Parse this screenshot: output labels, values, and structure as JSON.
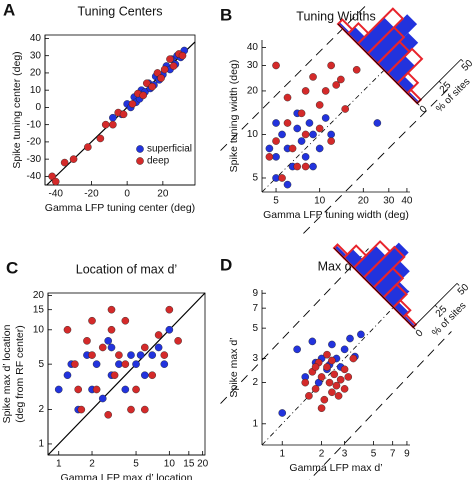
{
  "chart_data": [
    {
      "type": "scatter",
      "panel": "A",
      "title": "Tuning Centers",
      "xlabel": [
        "Gamma LFP tuning center (deg)"
      ],
      "ylabel": [
        "Spike tuning center (deg)"
      ],
      "xscale": "linear",
      "yscale": "linear",
      "xlim": [
        -46,
        38
      ],
      "ylim": [
        -45,
        42
      ],
      "xticks": [
        -40,
        -20,
        0,
        20
      ],
      "yticks": [
        -40,
        -30,
        -20,
        -10,
        0,
        10,
        20,
        30,
        40
      ],
      "box": true,
      "identity_line": "solid",
      "legend": "lower right",
      "series": [
        {
          "name": "superficial",
          "color": "#2233dd",
          "x": [
            -8,
            -3,
            0,
            2,
            4,
            5,
            7,
            8,
            10,
            12,
            13,
            15,
            16,
            18,
            20,
            22,
            24,
            25,
            27,
            28,
            30,
            32
          ],
          "y": [
            -6,
            -4,
            2,
            0,
            6,
            3,
            5,
            10,
            9,
            14,
            11,
            13,
            18,
            16,
            19,
            24,
            22,
            28,
            25,
            30,
            29,
            33
          ]
        },
        {
          "name": "deep",
          "color": "#d42a2a",
          "x": [
            -42,
            -40,
            -35,
            -30,
            -22,
            -15,
            -12,
            -8,
            -5,
            -2,
            3,
            6,
            9,
            11,
            14,
            17,
            19,
            21,
            24,
            26,
            29,
            31
          ],
          "y": [
            -40,
            -43,
            -32,
            -30,
            -23,
            -18,
            -10,
            -10,
            -3,
            -4,
            2,
            8,
            7,
            14,
            12,
            20,
            17,
            22,
            28,
            24,
            31,
            30
          ]
        }
      ]
    },
    {
      "type": "scatter",
      "panel": "B",
      "title": "Tuning Widths",
      "xlabel": [
        "Gamma LFP tuning width (deg)"
      ],
      "ylabel": [
        "Spike tuning width (deg)"
      ],
      "xscale": "log",
      "yscale": "log",
      "xlim": [
        4,
        42
      ],
      "ylim": [
        4,
        45
      ],
      "xticks": [
        5,
        10,
        20,
        30,
        40
      ],
      "yticks": [
        5,
        10,
        20,
        30,
        40
      ],
      "box": false,
      "identity_line": "dashed",
      "series": [
        {
          "color": "#2233dd",
          "x": [
            4.5,
            5,
            5.5,
            5,
            6,
            6.5,
            7,
            7.5,
            8,
            8.5,
            9,
            10,
            11,
            6,
            5,
            7,
            12,
            9,
            25
          ],
          "y": [
            8,
            7,
            10,
            5,
            8,
            6,
            11,
            9,
            7,
            12,
            10,
            8,
            13,
            4.5,
            12,
            14,
            10,
            6,
            12
          ]
        },
        {
          "color": "#d42a2a",
          "x": [
            4.5,
            5,
            5.5,
            6,
            6.5,
            7,
            7.5,
            8,
            9,
            10,
            11,
            12,
            13,
            15,
            6,
            8,
            10,
            12,
            14,
            18,
            28,
            8,
            5
          ],
          "y": [
            7,
            9,
            5,
            12,
            8,
            6,
            14,
            10,
            25,
            16,
            20,
            9,
            22,
            15,
            18,
            20,
            11,
            30,
            24,
            28,
            44,
            6,
            30
          ]
        }
      ],
      "histogram": {
        "xlabel": "% of sites",
        "ticks": [
          0,
          25,
          50
        ],
        "bins": [
          0,
          1,
          2,
          3,
          4,
          5,
          6,
          7,
          8
        ],
        "series": [
          {
            "color": "#2233dd",
            "fill": true,
            "values": [
              2,
              8,
              30,
              45,
              35,
              20,
              8,
              2
            ]
          },
          {
            "color": "#e8242c",
            "fill": false,
            "values": [
              5,
              12,
              40,
              30,
              25,
              28,
              12,
              4
            ]
          }
        ]
      }
    },
    {
      "type": "scatter",
      "panel": "C",
      "title": "Location of max d’",
      "xlabel": [
        "Gamma LFP max d’ location",
        "(deg from RF center)"
      ],
      "ylabel": [
        "Spike max d’ location",
        "(deg from RF center)"
      ],
      "xscale": "log",
      "yscale": "log",
      "xlim": [
        0.8,
        21
      ],
      "ylim": [
        0.8,
        21
      ],
      "xticks": [
        1,
        2,
        5,
        10,
        15,
        20
      ],
      "yticks": [
        1,
        2,
        5,
        10,
        15,
        20
      ],
      "box": true,
      "identity_line": "solid",
      "series": [
        {
          "color": "#2233dd",
          "x": [
            1,
            1.2,
            1.5,
            1.8,
            2,
            2.2,
            2.5,
            3,
            3,
            3.5,
            4,
            4.5,
            5,
            5.5,
            6,
            7,
            8,
            9,
            10,
            1.3,
            2.8
          ],
          "y": [
            3,
            4,
            2,
            6,
            3,
            5,
            2.5,
            4,
            7,
            5,
            3,
            6,
            5,
            6,
            4,
            6,
            7,
            5,
            10,
            5,
            8
          ]
        },
        {
          "color": "#d42a2a",
          "x": [
            1.2,
            1.4,
            1.6,
            1.8,
            2,
            2.2,
            2.5,
            2.8,
            3,
            3.2,
            3.5,
            4,
            4.5,
            5,
            6,
            7,
            8,
            9,
            10,
            12,
            1.5,
            2,
            3,
            4,
            6
          ],
          "y": [
            10,
            5,
            2,
            8,
            12,
            3,
            7,
            1.8,
            10,
            4,
            6,
            12,
            2,
            3,
            7,
            4,
            9,
            6,
            15,
            8,
            3,
            6,
            15,
            5,
            2
          ]
        }
      ]
    },
    {
      "type": "scatter",
      "panel": "D",
      "title": "Max d’",
      "xlabel": [
        "Gamma LFP max d’"
      ],
      "ylabel": [
        "Spike max d’"
      ],
      "xscale": "log",
      "yscale": "log",
      "xlim": [
        0.7,
        9.5
      ],
      "ylim": [
        0.7,
        9.5
      ],
      "xticks": [
        1,
        2,
        3,
        5,
        7,
        9
      ],
      "yticks": [
        1,
        2,
        3,
        5,
        7,
        9
      ],
      "box": false,
      "identity_line": "dashed",
      "series": [
        {
          "color": "#2233dd",
          "x": [
            1,
            1.3,
            1.5,
            1.7,
            1.8,
            2,
            2.2,
            2.4,
            2.6,
            2.8,
            3,
            3.3,
            3.6,
            4,
            1.9,
            2.3
          ],
          "y": [
            1.2,
            3.5,
            2.2,
            4,
            2.8,
            3,
            2.5,
            3.8,
            3,
            2.6,
            3.5,
            4.2,
            3.1,
            4.5,
            2,
            2.7
          ]
        },
        {
          "color": "#d42a2a",
          "x": [
            1.5,
            1.6,
            1.7,
            1.8,
            1.9,
            2,
            2.1,
            2.2,
            2.3,
            2.4,
            2.5,
            2.6,
            2.8,
            3,
            3.2,
            3.5,
            2,
            2.2,
            1.8,
            2.7,
            3,
            2.4
          ],
          "y": [
            2,
            1.6,
            2.4,
            1.8,
            2.8,
            2.2,
            1.5,
            2.6,
            2,
            1.7,
            2.3,
            1.9,
            2.1,
            2.5,
            2.2,
            3,
            1.3,
            3.2,
            2.6,
            1.6,
            1.8,
            2.9
          ]
        }
      ],
      "histogram": {
        "xlabel": "% of sites",
        "ticks": [
          0,
          25,
          50
        ],
        "bins": [
          0,
          1,
          2,
          3,
          4,
          5,
          6,
          7,
          8
        ],
        "series": [
          {
            "color": "#2233dd",
            "fill": true,
            "values": [
              3,
              10,
              25,
              40,
              30,
              18,
              6,
              2
            ]
          },
          {
            "color": "#e8242c",
            "fill": false,
            "values": [
              4,
              14,
              30,
              35,
              22,
              15,
              8,
              3
            ]
          }
        ]
      }
    }
  ]
}
